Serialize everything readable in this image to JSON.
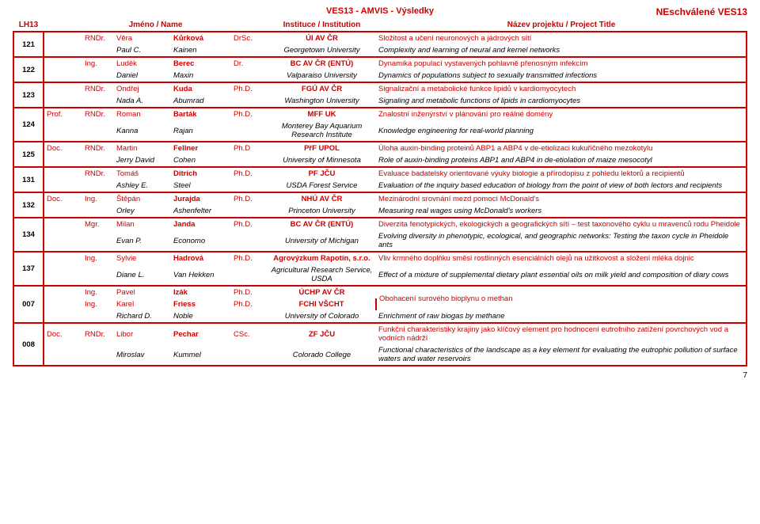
{
  "header": {
    "center_title": "VES13 - AMVIS - Výsledky",
    "right_title": "NEschválené VES13",
    "col_lh": "LH13",
    "col_name": "Jméno / Name",
    "col_inst": "Instituce / Institution",
    "col_proj": "Název projektu / Project Title",
    "page_number": "7"
  },
  "groups": [
    {
      "id": "121",
      "rows": [
        {
          "t1": "",
          "t2": "RNDr.",
          "first": "Věra",
          "last": "Kůrková",
          "degree": "DrSc.",
          "inst": "ÚI AV ČR",
          "proj": "Složitost a učení neuronových a jádrových sítí"
        },
        {
          "t1": "",
          "t2": "",
          "first": "Paul C.",
          "last": "Kainen",
          "degree": "",
          "inst": "Georgetown University",
          "proj": "Complexity and learning of neural and kernel networks",
          "italic": true
        }
      ]
    },
    {
      "id": "122",
      "rows": [
        {
          "t1": "",
          "t2": "Ing.",
          "first": "Luděk",
          "last": "Berec",
          "degree": "Dr.",
          "inst": "BC AV ČR (ENTÚ)",
          "proj": "Dynamika populací vystavených pohlavně přenosným infekcím"
        },
        {
          "t1": "",
          "t2": "",
          "first": "Daniel",
          "last": "Maxin",
          "degree": "",
          "inst": "Valparaiso University",
          "proj": "Dynamics of populations subject to sexually transmitted infections",
          "italic": true
        }
      ]
    },
    {
      "id": "123",
      "rows": [
        {
          "t1": "",
          "t2": "RNDr.",
          "first": "Ondřej",
          "last": "Kuda",
          "degree": "Ph.D.",
          "inst": "FGÚ AV ČR",
          "proj": "Signalizační a metabolické funkce lipidů v kardiomyocytech"
        },
        {
          "t1": "",
          "t2": "",
          "first": "Nada A.",
          "last": "Abumrad",
          "degree": "",
          "inst": "Washington University",
          "proj": "Signaling and metabolic functions of lipids in cardiomyocytes",
          "italic": true
        }
      ]
    },
    {
      "id": "124",
      "rows": [
        {
          "t1": "Prof.",
          "t2": "RNDr.",
          "first": "Roman",
          "last": "Barták",
          "degree": "Ph.D.",
          "inst": "MFF UK",
          "proj": "Znalostní inženýrství v plánování pro reálné domény"
        },
        {
          "t1": "",
          "t2": "",
          "first": "Kanna",
          "last": "Rajan",
          "degree": "",
          "inst": "Monterey Bay Aquarium Research Institute",
          "proj": "Knowledge engineering for real-world planning",
          "italic": true
        }
      ]
    },
    {
      "id": "125",
      "rows": [
        {
          "t1": "Doc.",
          "t2": "RNDr.",
          "first": "Martin",
          "last": "Fellner",
          "degree": "Ph.D",
          "inst": "PřF UPOL",
          "proj": "Úloha auxin-binding proteinů ABP1 a ABP4 v de-etiolizaci kukuřičného mezokotylu"
        },
        {
          "t1": "",
          "t2": "",
          "first": "Jerry David",
          "last": "Cohen",
          "degree": "",
          "inst": "University of Minnesota",
          "proj": "Role of auxin-binding proteins ABP1 and ABP4 in de-etiolation of maize mesocotyl",
          "italic": true
        }
      ]
    },
    {
      "id": "131",
      "rows": [
        {
          "t1": "",
          "t2": "RNDr.",
          "first": "Tomáš",
          "last": "Ditrich",
          "degree": "Ph.D.",
          "inst": "PF JČU",
          "proj": "Evaluace badatelsky orientované výuky biologie a přírodopisu z pohledu lektorů a recipientů"
        },
        {
          "t1": "",
          "t2": "",
          "first": "Ashley E.",
          "last": "Steel",
          "degree": "",
          "inst": "USDA Forest Service",
          "proj": "Evaluation of the inquiry based education of biology from the point of view of both lectors and recipients",
          "italic": true
        }
      ]
    },
    {
      "id": "132",
      "rows": [
        {
          "t1": "Doc.",
          "t2": "Ing.",
          "first": "Štěpán",
          "last": "Jurajda",
          "degree": "Ph.D.",
          "inst": "NHÚ AV ČR",
          "proj": "Mezinárodní srovnání mezd pomocí McDonald's"
        },
        {
          "t1": "",
          "t2": "",
          "first": "Orley",
          "last": "Ashenfelter",
          "degree": "",
          "inst": "Princeton University",
          "proj": "Measuring real wages using McDonald's workers",
          "italic": true
        }
      ]
    },
    {
      "id": "134",
      "rows": [
        {
          "t1": "",
          "t2": "Mgr.",
          "first": "Milan",
          "last": "Janda",
          "degree": "Ph.D.",
          "inst": "BC AV ČR (ENTÚ)",
          "proj": "Diverzita fenotypických, ekologických a geografických sítí – test taxonového cyklu u mravenců rodu Pheidole"
        },
        {
          "t1": "",
          "t2": "",
          "first": "Evan P.",
          "last": "Economo",
          "degree": "",
          "inst": "University of Michigan",
          "proj": "Evolving diversity in phenotypic, ecological, and geographic networks: Testing the taxon cycle in Pheidole ants",
          "italic": true
        }
      ]
    },
    {
      "id": "137",
      "rows": [
        {
          "t1": "",
          "t2": "Ing.",
          "first": "Sylvie",
          "last": "Hadrová",
          "degree": "Ph.D.",
          "inst": "Agrovýzkum Rapotín, s.r.o.",
          "proj": "Vliv krmného doplňku směsi rostlinných esenciálních olejů na užitkovost a složení mléka dojnic"
        },
        {
          "t1": "",
          "t2": "",
          "first": "Diane L.",
          "last": "Van Hekken",
          "degree": "",
          "inst": "Agricultural Research Service, USDA",
          "proj": "Effect of a mixture of supplemental dietary plant essential oils on milk yield and composition of diary cows",
          "italic": true
        }
      ]
    },
    {
      "id": "007",
      "rows": [
        {
          "t1": "",
          "t2": "Ing.",
          "first": "Pavel",
          "last": "Izák",
          "degree": "Ph.D.",
          "inst": "ÚCHP AV ČR",
          "proj": "Obohacení surového bioplynu o methan",
          "rowspan_proj": 2
        },
        {
          "t1": "",
          "t2": "Ing.",
          "first": "Karel",
          "last": "Friess",
          "degree": "Ph.D.",
          "inst": "FCHI VŠCHT"
        },
        {
          "t1": "",
          "t2": "",
          "first": "Richard D.",
          "last": "Noble",
          "degree": "",
          "inst": "University of Colorado",
          "proj": "Enrichment of raw biogas by methane",
          "italic": true
        }
      ]
    },
    {
      "id": "008",
      "rows": [
        {
          "t1": "Doc.",
          "t2": "RNDr.",
          "first": "Libor",
          "last": "Pechar",
          "degree": "CSc.",
          "inst": "ZF JČU",
          "proj": "Funkční charakteristiky krajiny jako klíčový element pro hodnocení eutrofního zatížení povrchových vod a vodních nádrží"
        },
        {
          "t1": "",
          "t2": "",
          "first": "Miroslav",
          "last": "Kummel",
          "degree": "",
          "inst": "Colorado College",
          "proj": "Functional characteristics of the landscape as a key element for evaluating the eutrophic pollution of surface waters and water reservoirs",
          "italic": true
        }
      ]
    }
  ]
}
